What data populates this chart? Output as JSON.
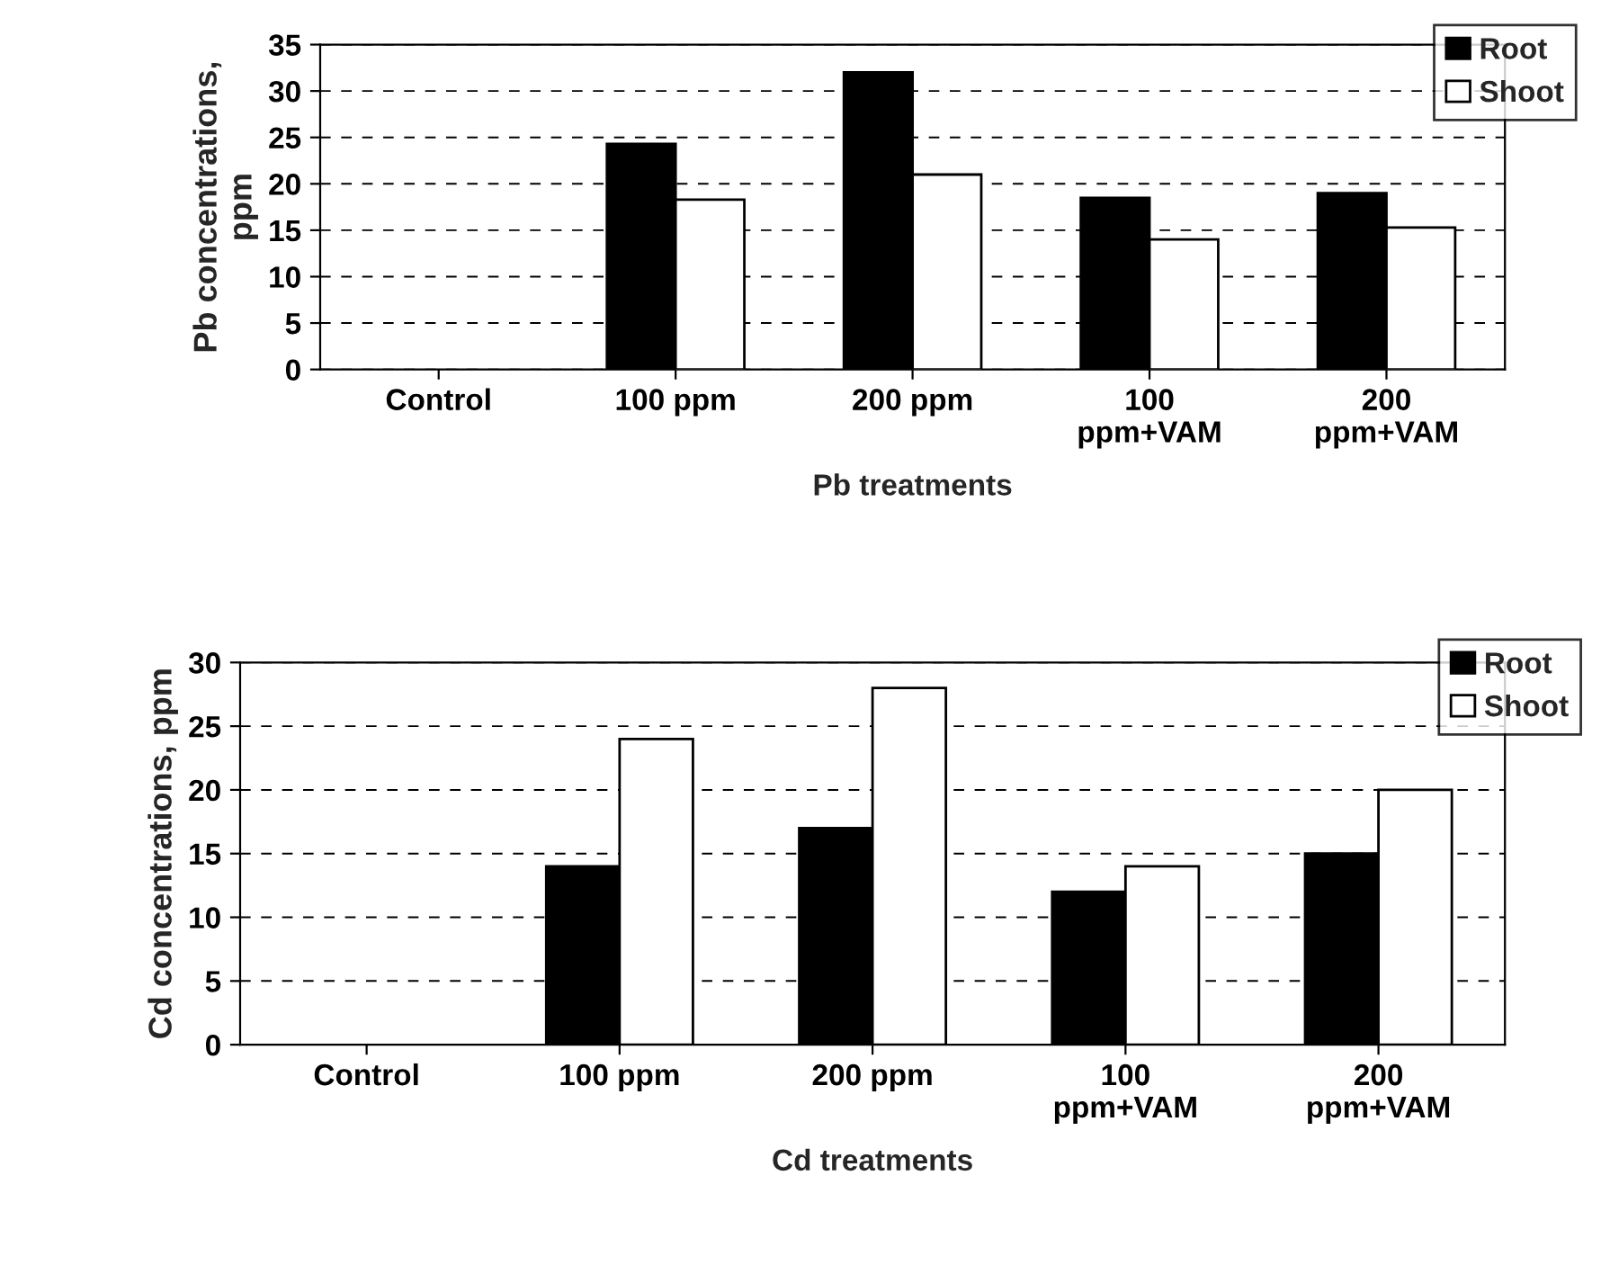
{
  "chart_data": [
    {
      "type": "bar",
      "xlabel": "Pb treatments",
      "ylabel": "Pb concentrations,\nppm",
      "categories": [
        "Control",
        "100 ppm",
        "200 ppm",
        "100\nppm+VAM",
        "200\nppm+VAM"
      ],
      "series": [
        {
          "name": "Root",
          "color": "#000000",
          "values": [
            0,
            24.3,
            32,
            18.5,
            19
          ]
        },
        {
          "name": "Shoot",
          "color": "#ffffff",
          "values": [
            0,
            18.3,
            21,
            14,
            15.3
          ]
        }
      ],
      "ylim": [
        0,
        35
      ],
      "yticks": [
        0,
        5,
        10,
        15,
        20,
        25,
        30,
        35
      ],
      "grid": "y",
      "legend": "top right"
    },
    {
      "type": "bar",
      "xlabel": "Cd treatments",
      "ylabel": "Cd concentrations, ppm",
      "categories": [
        "Control",
        "100 ppm",
        "200 ppm",
        "100\nppm+VAM",
        "200\nppm+VAM"
      ],
      "series": [
        {
          "name": "Root",
          "color": "#000000",
          "values": [
            0,
            14,
            17,
            12,
            15
          ]
        },
        {
          "name": "Shoot",
          "color": "#ffffff",
          "values": [
            0,
            24,
            28,
            14,
            20
          ]
        }
      ],
      "ylim": [
        0,
        30
      ],
      "yticks": [
        0,
        5,
        10,
        15,
        20,
        25,
        30
      ],
      "grid": "y",
      "legend": "top right"
    }
  ]
}
